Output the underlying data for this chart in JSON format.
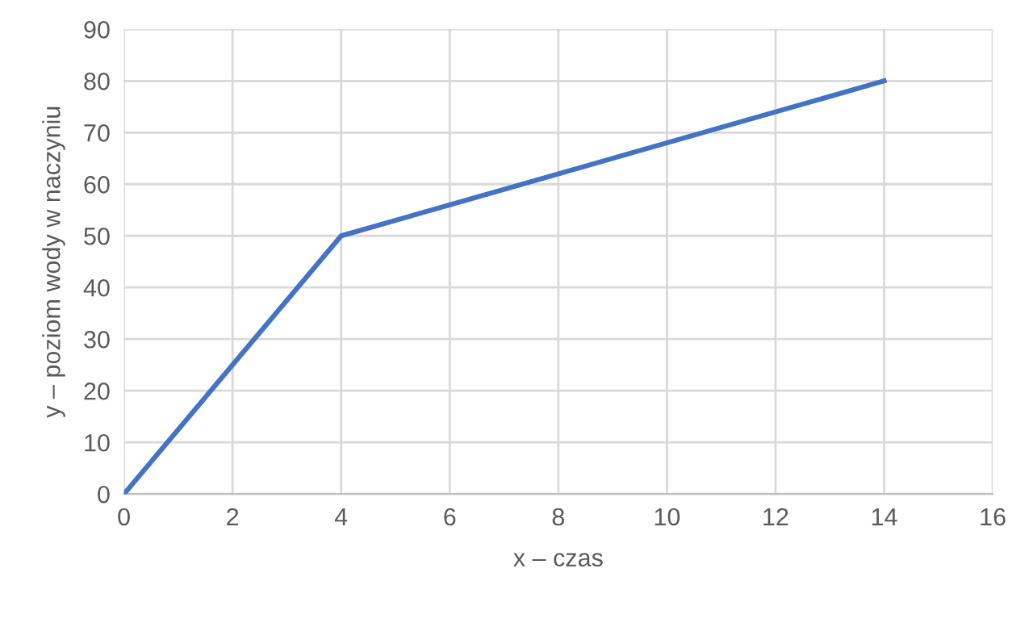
{
  "chart_data": {
    "type": "line",
    "xlabel": "x – czas",
    "ylabel": "y – poziom wody w naczyniu",
    "series": [
      {
        "color": "#4472c4",
        "x": [
          0,
          4,
          14
        ],
        "values": [
          0,
          50,
          80
        ]
      }
    ],
    "xlim": [
      0,
      16
    ],
    "xticks": [
      0,
      2,
      4,
      6,
      8,
      10,
      12,
      14,
      16
    ],
    "ylim": [
      0,
      90
    ],
    "yticks": [
      0,
      10,
      20,
      30,
      40,
      50,
      60,
      70,
      80,
      90
    ],
    "grid": true,
    "marker": "none",
    "line_style": "solid"
  }
}
